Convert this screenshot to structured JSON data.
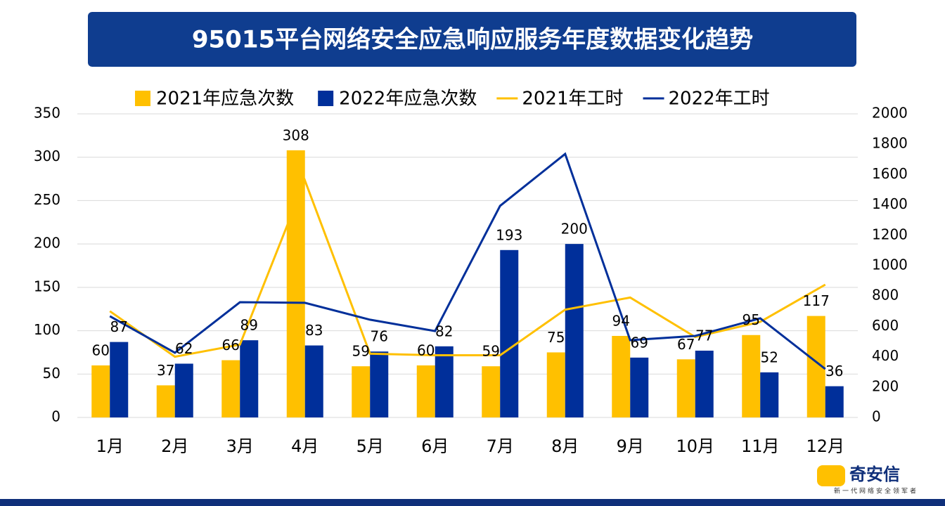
{
  "chart_data": {
    "type": "bar",
    "title": "95015平台网络安全应急响应服务年度数据变化趋势",
    "categories": [
      "1月",
      "2月",
      "3月",
      "4月",
      "5月",
      "6月",
      "7月",
      "8月",
      "9月",
      "10月",
      "11月",
      "12月"
    ],
    "series": [
      {
        "name": "2021年应急次数",
        "type": "bar",
        "color": "#ffc000",
        "values": [
          60,
          37,
          66,
          308,
          59,
          60,
          59,
          75,
          94,
          67,
          95,
          117
        ]
      },
      {
        "name": "2022年应急次数",
        "type": "bar",
        "color": "#002f9a",
        "values": [
          87,
          62,
          89,
          83,
          76,
          82,
          193,
          200,
          69,
          77,
          52,
          36
        ]
      },
      {
        "name": "2021年工时",
        "type": "line",
        "axis": "y2",
        "color": "#ffc000",
        "values": [
          700,
          400,
          480,
          1560,
          420,
          410,
          410,
          710,
          790,
          530,
          630,
          875
        ]
      },
      {
        "name": "2022年工时",
        "type": "line",
        "axis": "y2",
        "color": "#002f9a",
        "values": [
          667,
          426,
          759,
          755,
          644,
          569,
          1394,
          1736,
          509,
          537,
          653,
          319
        ]
      }
    ],
    "ylim": [
      0,
      350
    ],
    "yticks": [
      0,
      50,
      100,
      150,
      200,
      250,
      300,
      350
    ],
    "y2lim": [
      0,
      2000
    ],
    "y2ticks": [
      0,
      200,
      400,
      600,
      800,
      1000,
      1200,
      1400,
      1600,
      1800,
      2000
    ],
    "grid": true,
    "legend": "top"
  },
  "logo": {
    "name": "奇安信",
    "slogan": "新一代网络安全领军者"
  }
}
